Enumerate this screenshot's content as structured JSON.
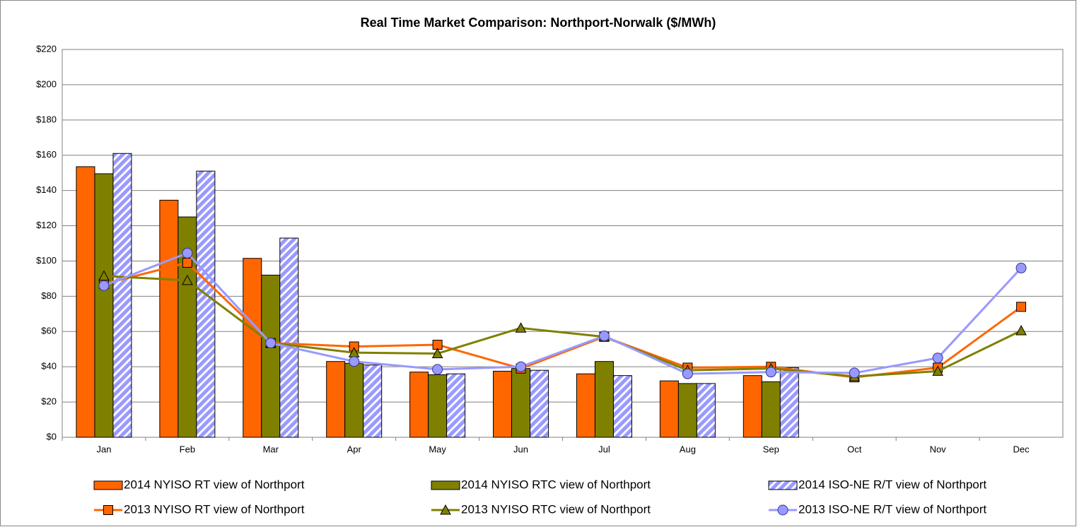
{
  "chart_data": {
    "type": "bar",
    "title": "Real Time Market Comparison: Northport-Norwalk ($/MWh)",
    "categories": [
      "Jan",
      "Feb",
      "Mar",
      "Apr",
      "May",
      "Jun",
      "Jul",
      "Aug",
      "Sep",
      "Oct",
      "Nov",
      "Dec"
    ],
    "ylim": [
      0,
      220
    ],
    "yticks": [
      {
        "value": 0,
        "label": "$0"
      },
      {
        "value": 20,
        "label": "$20"
      },
      {
        "value": 40,
        "label": "$40"
      },
      {
        "value": 60,
        "label": "$60"
      },
      {
        "value": 80,
        "label": "$80"
      },
      {
        "value": 100,
        "label": "$100"
      },
      {
        "value": 120,
        "label": "$120"
      },
      {
        "value": 140,
        "label": "$140"
      },
      {
        "value": 160,
        "label": "$160"
      },
      {
        "value": 180,
        "label": "$180"
      },
      {
        "value": 200,
        "label": "$200"
      },
      {
        "value": 220,
        "label": "$220"
      }
    ],
    "grid": true,
    "legend": "bottom",
    "series": [
      {
        "name": "2014 NYISO RT view of Northport",
        "type": "bar",
        "color": "#ff6600",
        "values": [
          153.5,
          134.5,
          101.5,
          43,
          37,
          37.5,
          36,
          32,
          35,
          null,
          null,
          null
        ]
      },
      {
        "name": "2014 NYISO RTC view of Northport",
        "type": "bar",
        "color": "#808000",
        "values": [
          149.5,
          125,
          92,
          42,
          35.5,
          39,
          43,
          30.5,
          31.5,
          null,
          null,
          null
        ]
      },
      {
        "name": "2014 ISO-NE R/T view of Northport",
        "type": "bar",
        "color": "#9999ff",
        "hatch": true,
        "values": [
          161,
          151,
          113,
          41,
          36,
          38,
          35,
          30.5,
          39.5,
          null,
          null,
          null
        ]
      },
      {
        "name": "2013 NYISO RT view of Northport",
        "type": "line",
        "color": "#ff6600",
        "marker": "square",
        "values": [
          87,
          99,
          53.5,
          51.5,
          52.5,
          39,
          57,
          39.5,
          40,
          34,
          39.5,
          74
        ]
      },
      {
        "name": "2013 NYISO RTC view of Northport",
        "type": "line",
        "color": "#808000",
        "marker": "triangle",
        "values": [
          91.5,
          89,
          53.5,
          48,
          47.5,
          62,
          57,
          38,
          39,
          34.5,
          37.5,
          60.5
        ]
      },
      {
        "name": "2013 ISO-NE R/T view of Northport",
        "type": "line",
        "color": "#9999ff",
        "marker": "circle",
        "values": [
          86,
          104.5,
          53.5,
          43,
          38.5,
          40,
          57.5,
          36,
          37,
          36.5,
          45,
          96
        ]
      }
    ]
  }
}
